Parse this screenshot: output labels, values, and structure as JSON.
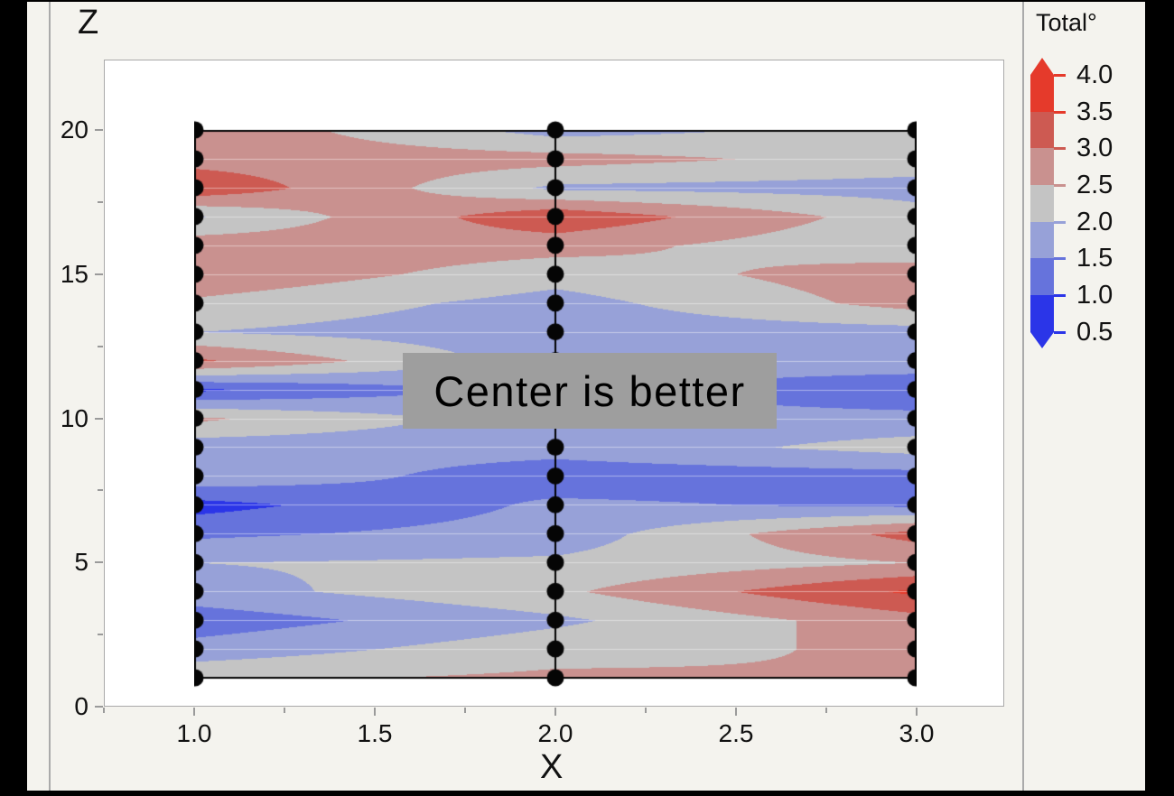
{
  "axes": {
    "x": {
      "title": "X",
      "tick_labels": [
        "1.0",
        "1.5",
        "2.0",
        "2.5",
        "3.0"
      ],
      "tick_values": [
        1.0,
        1.5,
        2.0,
        2.5,
        3.0
      ],
      "minor_tick_values": [
        0.75,
        1.25,
        1.75,
        2.25,
        2.75
      ]
    },
    "y": {
      "title": "Z",
      "tick_labels": [
        "0",
        "5",
        "10",
        "15",
        "20"
      ],
      "tick_values": [
        0,
        5,
        10,
        15,
        20
      ],
      "minor_tick_values": [
        2.5,
        7.5,
        12.5,
        17.5
      ]
    }
  },
  "legend": {
    "title": "Total°",
    "tick_labels": [
      "4.0",
      "3.5",
      "3.0",
      "2.5",
      "2.0",
      "1.5",
      "1.0",
      "0.5"
    ],
    "band_colors_top_to_bottom": [
      "#e53a2b",
      "#cd5a52",
      "#c9918f",
      "#c4c4c4",
      "#97a1d8",
      "#6673dc",
      "#2b35e8"
    ],
    "tick_colors": [
      "#e53a2b",
      "#e53a2b",
      "#cd5a52",
      "#c9918f",
      "#97a1d8",
      "#6673dc",
      "#2b35e8",
      "#2b35e8"
    ],
    "arrow_top_color": "#e53a2b",
    "arrow_bottom_color": "#2b35e8"
  },
  "annotation": {
    "text": "Center is better",
    "fill": "#9e9e9e",
    "text_color": "#000000"
  },
  "chart_data": {
    "type": "contour",
    "title": "",
    "xlabel": "X",
    "ylabel": "Z",
    "legend_label": "Total°",
    "xlim": [
      0.75,
      3.24
    ],
    "ylim": [
      0,
      22.4
    ],
    "grid": "white horizontal gridlines at each integer Z over the filled region",
    "x_levels": [
      1,
      2,
      3
    ],
    "z_levels": [
      1,
      2,
      3,
      4,
      5,
      6,
      7,
      8,
      9,
      10,
      11,
      12,
      13,
      14,
      15,
      16,
      17,
      18,
      19,
      20
    ],
    "contour_levels": [
      0.5,
      1.0,
      1.5,
      2.0,
      2.5,
      3.0,
      3.5,
      4.0
    ],
    "band_colors_low_to_high": [
      "#2b35e8",
      "#6673dc",
      "#97a1d8",
      "#c4c4c4",
      "#c9918f",
      "#cd5a52",
      "#e53a2b"
    ],
    "markers": "black dot at every grid point: X in {1,2,3}, Z integer 1..20 (dots at X=2, Z=10..12 hidden behind annotation box)",
    "values_note": "Total values at grid points estimated from contour band colors",
    "values_by_x": {
      "x1": [
        2.4,
        1.7,
        1.2,
        1.8,
        2.0,
        1.4,
        0.8,
        1.9,
        1.7,
        2.6,
        0.9,
        3.1,
        2.0,
        2.4,
        2.9,
        2.8,
        1.95,
        3.4,
        2.8,
        2.9
      ],
      "x2": [
        2.6,
        2.3,
        1.9,
        2.4,
        2.1,
        1.7,
        1.6,
        1.2,
        1.7,
        1.7,
        1.7,
        1.7,
        1.7,
        1.8,
        2.2,
        2.7,
        3.4,
        1.9,
        2.7,
        1.8
      ],
      "x3": [
        2.5,
        2.6,
        2.8,
        3.6,
        2.5,
        3.2,
        1.4,
        1.3,
        2.2,
        1.7,
        1.0,
        1.9,
        1.8,
        2.7,
        2.8,
        2.1,
        2.2,
        1.8,
        2.3,
        2.2
      ]
    }
  }
}
